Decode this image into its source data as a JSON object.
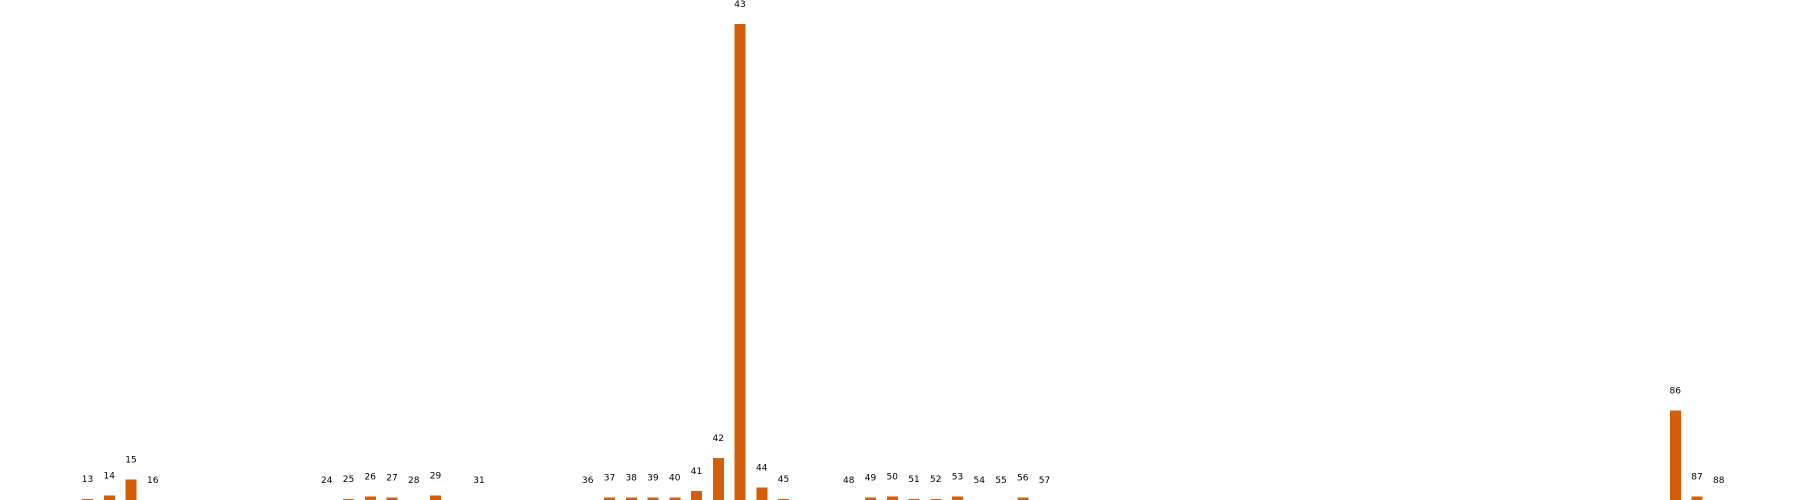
{
  "chart_data": {
    "type": "bar",
    "title": "",
    "xlabel": "",
    "ylabel": "",
    "ylim": [
      0,
      420
    ],
    "grid": false,
    "bar_color": "#d35f0a",
    "data_labels": [
      "13",
      "14",
      "15",
      "16",
      "24",
      "25",
      "26",
      "27",
      "28",
      "29",
      "31",
      "36",
      "37",
      "38",
      "39",
      "40",
      "41",
      "42",
      "43",
      "44",
      "45",
      "48",
      "49",
      "50",
      "51",
      "52",
      "53",
      "54",
      "55",
      "56",
      "57",
      "86",
      "87",
      "88"
    ],
    "categories": [
      13,
      14,
      15,
      16,
      24,
      25,
      26,
      27,
      28,
      29,
      31,
      36,
      37,
      38,
      39,
      40,
      41,
      42,
      43,
      44,
      45,
      48,
      49,
      50,
      51,
      52,
      53,
      54,
      55,
      56,
      57,
      86,
      87,
      88
    ],
    "values": [
      1,
      4,
      18,
      0,
      0,
      1,
      3,
      2,
      0,
      4,
      0,
      0,
      2,
      2,
      2,
      2,
      8,
      37,
      420,
      11,
      1,
      0,
      2,
      3,
      1,
      1,
      3,
      0,
      0,
      2,
      0,
      79,
      3,
      0
    ]
  }
}
